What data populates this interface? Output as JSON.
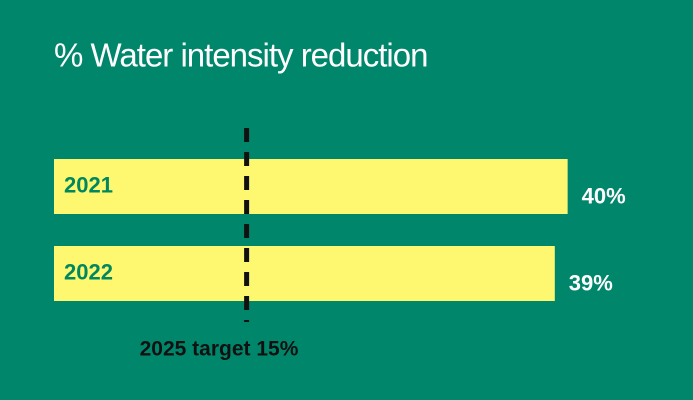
{
  "chart_data": {
    "type": "hbar",
    "title": "% Water intensity reduction",
    "categories": [
      "2021",
      "2022"
    ],
    "values": [
      40,
      39
    ],
    "value_labels": [
      "40%",
      "39%"
    ],
    "color": "#fdf86f",
    "xlim": [
      0,
      44
    ],
    "target": {
      "value": 15,
      "label": "2025 target 15%"
    }
  }
}
